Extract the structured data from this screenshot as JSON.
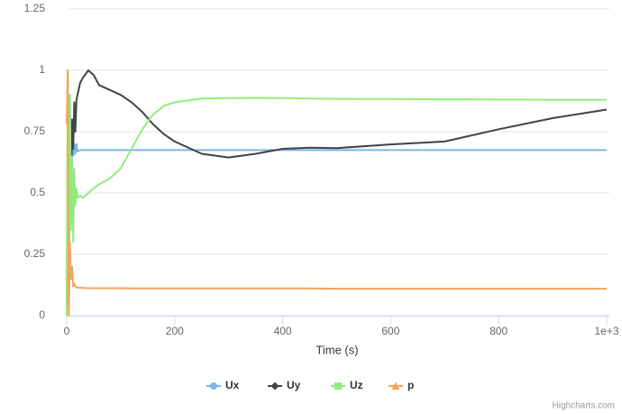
{
  "chart_data": {
    "type": "line",
    "xlabel": "Time (s)",
    "credits": "Highcharts.com",
    "x": [
      0,
      2,
      4,
      6,
      8,
      10,
      12,
      14,
      16,
      18,
      20,
      25,
      30,
      40,
      50,
      60,
      80,
      100,
      120,
      140,
      160,
      180,
      200,
      250,
      300,
      350,
      400,
      450,
      500,
      600,
      700,
      800,
      900,
      1000
    ],
    "series": [
      {
        "name": "Ux",
        "color": "#7cb5ec",
        "symbol": "circle",
        "values": [
          0,
          1.0,
          0.3,
          0.9,
          0.6,
          0.75,
          0.65,
          0.7,
          0.66,
          0.7,
          0.67,
          0.675,
          0.675,
          0.675,
          0.675,
          0.675,
          0.675,
          0.675,
          0.675,
          0.675,
          0.675,
          0.675,
          0.675,
          0.675,
          0.675,
          0.675,
          0.675,
          0.675,
          0.675,
          0.675,
          0.675,
          0.675,
          0.675,
          0.675
        ]
      },
      {
        "name": "Uy",
        "color": "#434348",
        "symbol": "diamond",
        "values": [
          0,
          0.5,
          0.2,
          0.7,
          0.4,
          0.8,
          0.68,
          0.87,
          0.75,
          0.88,
          0.9,
          0.95,
          0.97,
          1.0,
          0.98,
          0.94,
          0.92,
          0.9,
          0.87,
          0.83,
          0.78,
          0.74,
          0.71,
          0.66,
          0.645,
          0.66,
          0.68,
          0.685,
          0.683,
          0.698,
          0.71,
          0.76,
          0.805,
          0.84
        ]
      },
      {
        "name": "Uz",
        "color": "#90ed7d",
        "symbol": "square",
        "values": [
          0,
          1.0,
          0.2,
          0.9,
          0.35,
          0.65,
          0.3,
          0.6,
          0.45,
          0.52,
          0.48,
          0.49,
          0.48,
          0.5,
          0.52,
          0.535,
          0.56,
          0.6,
          0.68,
          0.76,
          0.82,
          0.855,
          0.87,
          0.885,
          0.887,
          0.888,
          0.887,
          0.885,
          0.884,
          0.883,
          0.882,
          0.881,
          0.88,
          0.88
        ]
      },
      {
        "name": "p",
        "color": "#f7a35c",
        "symbol": "triangle",
        "values": [
          0.78,
          1.0,
          0.0,
          0.3,
          0.15,
          0.2,
          0.12,
          0.13,
          0.12,
          0.115,
          0.115,
          0.114,
          0.113,
          0.112,
          0.112,
          0.112,
          0.112,
          0.112,
          0.111,
          0.111,
          0.111,
          0.111,
          0.111,
          0.111,
          0.111,
          0.111,
          0.111,
          0.111,
          0.11,
          0.11,
          0.11,
          0.11,
          0.11,
          0.11
        ]
      }
    ],
    "xlim": [
      0,
      1005
    ],
    "xticks": [
      0,
      200,
      400,
      600,
      800,
      {
        "value": 1000,
        "label": "1e+3"
      }
    ],
    "ylim": [
      0,
      1.25
    ],
    "yticks": [
      0,
      0.25,
      0.5,
      0.75,
      1,
      1.25
    ],
    "grid": true
  }
}
